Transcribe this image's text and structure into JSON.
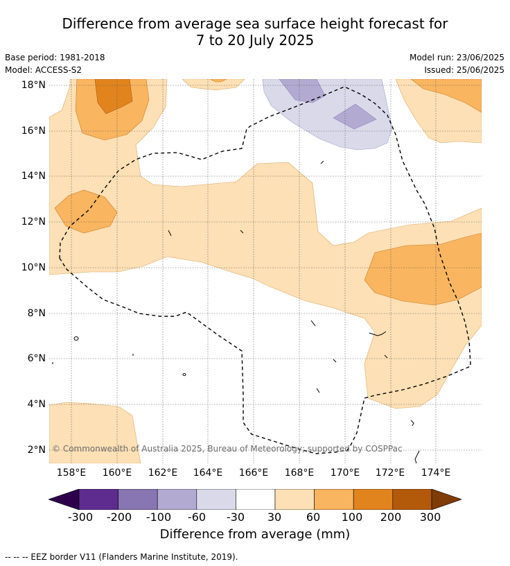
{
  "title_line1": "Difference from average sea surface height forecast for",
  "title_line2": "7 to 20 July 2025",
  "meta": {
    "base_period": "Base period: 1981-2018",
    "model": "Model: ACCESS-S2",
    "model_run": "Model run: 23/06/2025",
    "issued": "Issued: 25/06/2025"
  },
  "map": {
    "lat_labels": [
      "18°N",
      "16°N",
      "14°N",
      "12°N",
      "10°N",
      "8°N",
      "6°N",
      "4°N",
      "2°N"
    ],
    "lon_labels": [
      "158°E",
      "160°E",
      "162°E",
      "164°E",
      "166°E",
      "168°E",
      "170°E",
      "172°E",
      "174°E"
    ],
    "copyright": "© Commonwealth of Australia 2025, Bureau of Meteorology; supported by COSPPac"
  },
  "colorbar": {
    "ticks": [
      "-300",
      "-200",
      "-100",
      "-60",
      "-30",
      "30",
      "60",
      "100",
      "200",
      "300"
    ],
    "colors": [
      "#2d004b",
      "#5e2c8e",
      "#8776b1",
      "#b3aad2",
      "#d9d9ea",
      "#ffffff",
      "#fde0b5",
      "#f9b560",
      "#e1841e",
      "#b35a0a",
      "#7f3b08"
    ],
    "title": "Difference from average (mm)"
  },
  "footnote": "--  --  -- EEZ border V11 (Flanders Marine Institute, 2019)."
}
